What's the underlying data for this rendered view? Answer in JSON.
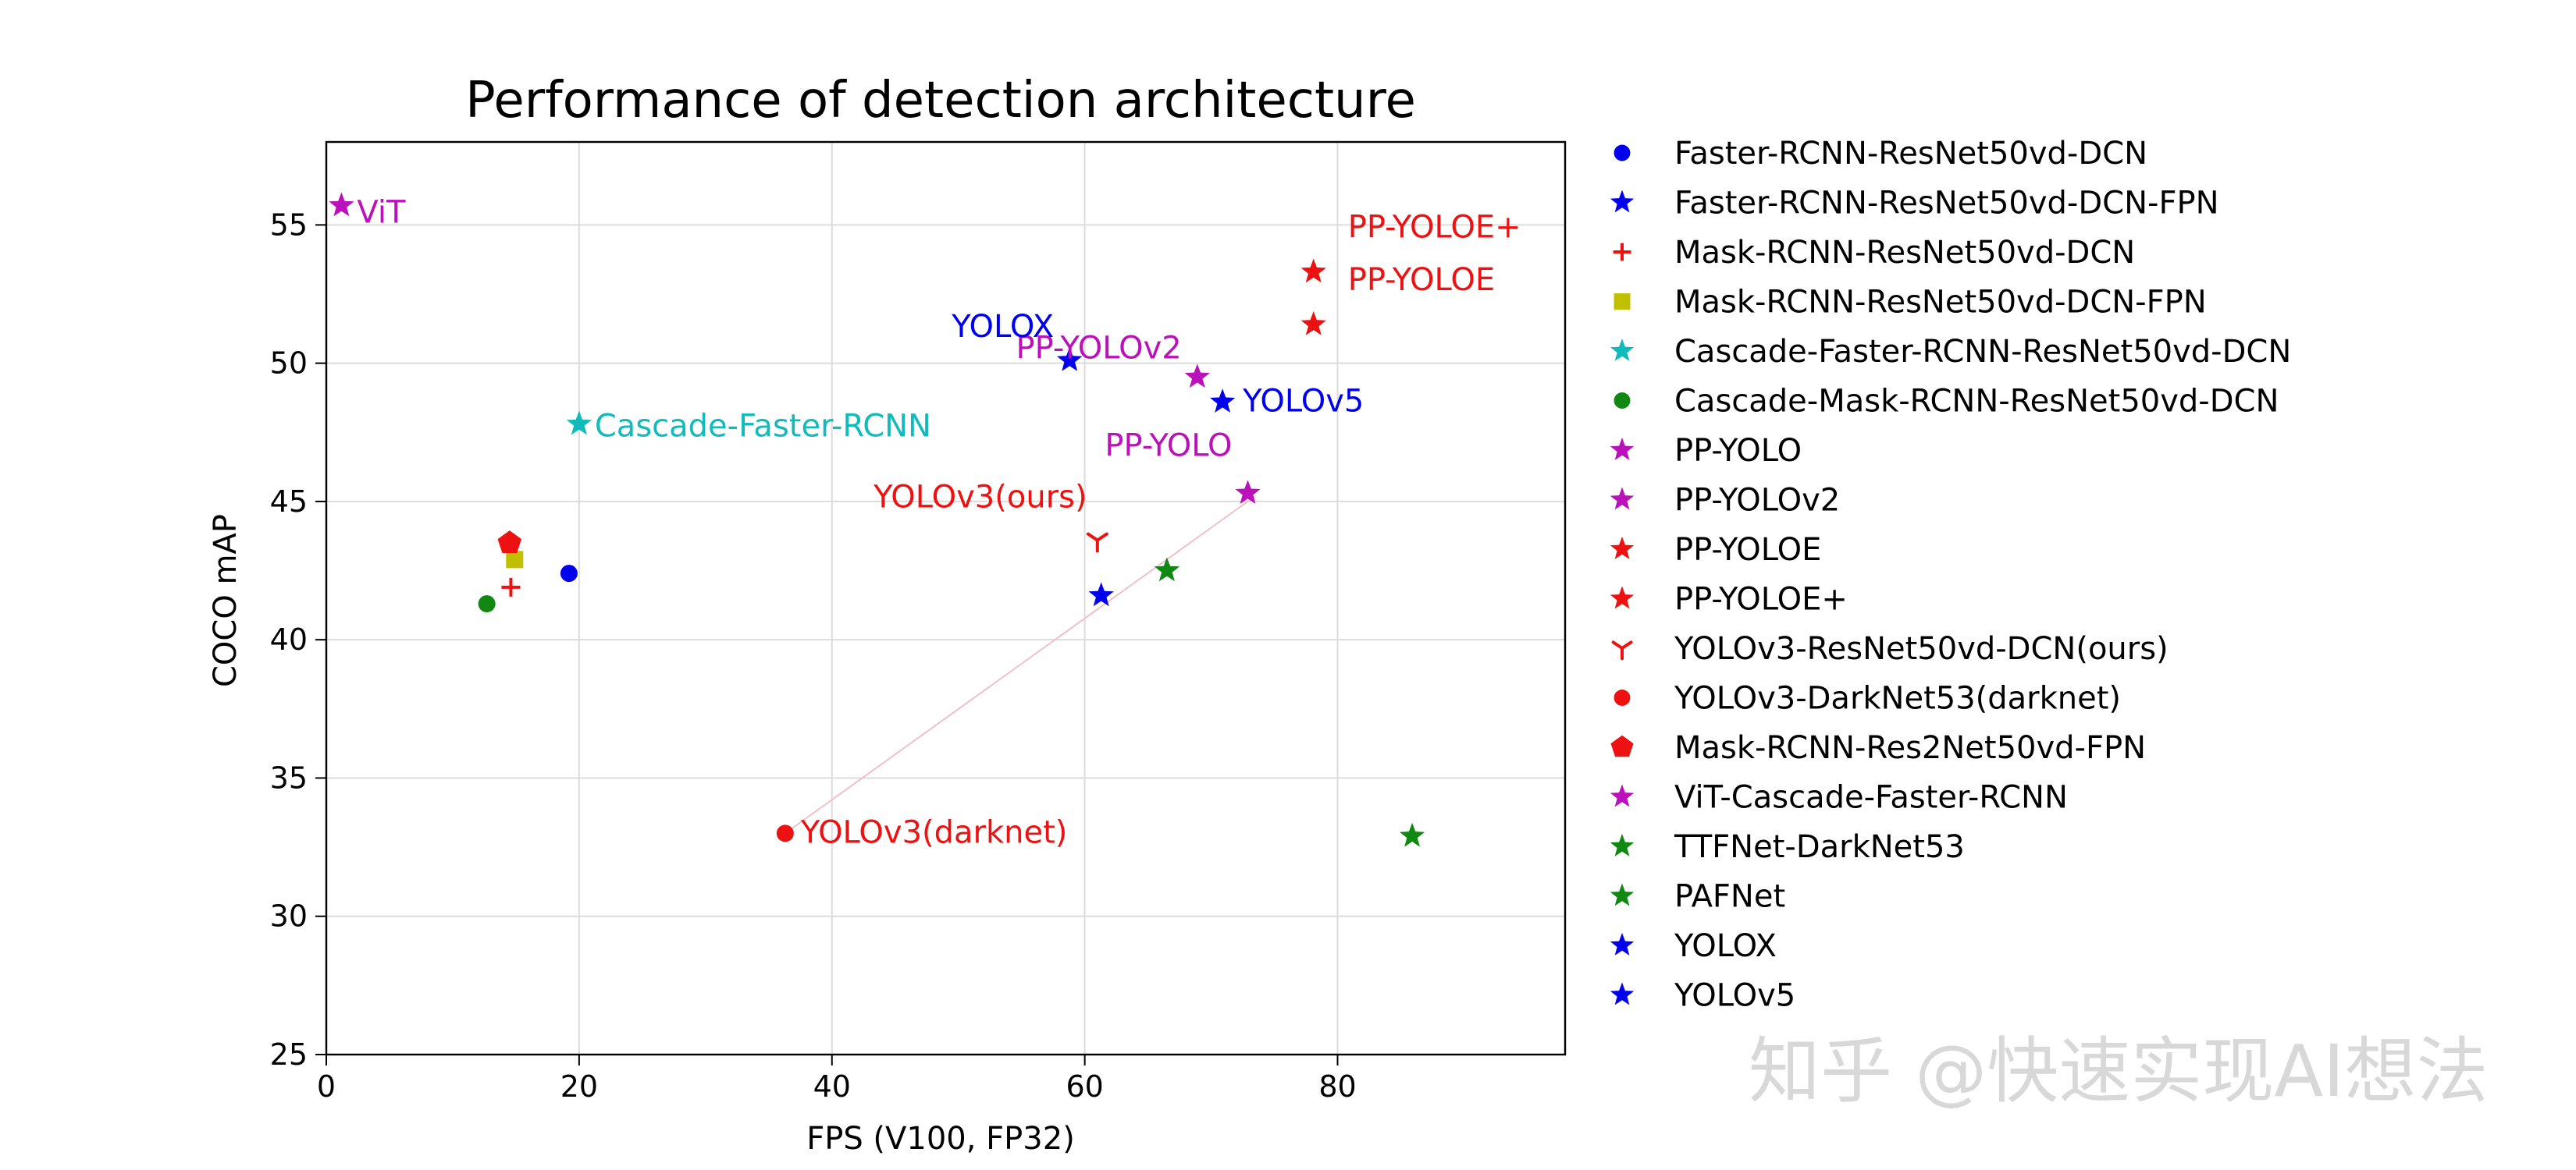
{
  "chart_data": {
    "type": "scatter",
    "title": "Performance of detection architecture",
    "xlabel": "FPS (V100, FP32)",
    "ylabel": "COCO mAP",
    "xlim": [
      0,
      98
    ],
    "ylim": [
      25,
      58
    ],
    "xticks": [
      0,
      20,
      40,
      60,
      80
    ],
    "yticks": [
      25,
      30,
      35,
      40,
      45,
      50,
      55
    ],
    "grid": true,
    "legend_placement": "right, outside plot",
    "series": [
      {
        "name": "Faster-RCNN-ResNet50vd-DCN",
        "marker": "circle",
        "color": "#0000ee",
        "x": 19.2,
        "y": 42.4
      },
      {
        "name": "Faster-RCNN-ResNet50vd-DCN-FPN",
        "marker": "star",
        "color": "#0000ee",
        "x": 61.3,
        "y": 41.6
      },
      {
        "name": "Mask-RCNN-ResNet50vd-DCN",
        "marker": "plus",
        "color": "#ee1111",
        "x": 14.6,
        "y": 41.9
      },
      {
        "name": "Mask-RCNN-ResNet50vd-DCN-FPN",
        "marker": "square",
        "color": "#c0c000",
        "x": 14.9,
        "y": 42.9
      },
      {
        "name": "Cascade-Faster-RCNN-ResNet50vd-DCN",
        "marker": "star",
        "color": "#11bbbb",
        "x": 20.0,
        "y": 47.8,
        "label": "Cascade-Faster-RCNN",
        "label_color": "#11bbbb"
      },
      {
        "name": "Cascade-Mask-RCNN-ResNet50vd-DCN",
        "marker": "circle",
        "color": "#118811",
        "x": 12.7,
        "y": 41.3
      },
      {
        "name": "PP-YOLO",
        "marker": "star",
        "color": "#bb11bb",
        "x": 72.9,
        "y": 45.3,
        "label": "PP-YOLO",
        "label_color": "#bb11bb"
      },
      {
        "name": "PP-YOLOv2",
        "marker": "star",
        "color": "#bb11bb",
        "x": 68.9,
        "y": 49.5,
        "label": "PP-YOLOv2",
        "label_color": "#bb11bb"
      },
      {
        "name": "PP-YOLOE",
        "marker": "star",
        "color": "#ee1111",
        "x": 78.1,
        "y": 51.4,
        "label": "PP-YOLOE",
        "label_color": "#ee1111"
      },
      {
        "name": "PP-YOLOE+",
        "marker": "star",
        "color": "#ee1111",
        "x": 78.1,
        "y": 53.3,
        "label": "PP-YOLOE+",
        "label_color": "#ee1111"
      },
      {
        "name": "YOLOv3-ResNet50vd-DCN(ours)",
        "marker": "tri",
        "color": "#ee1111",
        "x": 61.0,
        "y": 43.6,
        "label": "YOLOv3(ours)",
        "label_color": "#ee1111"
      },
      {
        "name": "YOLOv3-DarkNet53(darknet)",
        "marker": "circle",
        "color": "#ee1111",
        "x": 36.3,
        "y": 33.0,
        "label": "YOLOv3(darknet)",
        "label_color": "#ee1111"
      },
      {
        "name": "Mask-RCNN-Res2Net50vd-FPN",
        "marker": "pentagon",
        "color": "#ee1111",
        "x": 14.5,
        "y": 43.5
      },
      {
        "name": "ViT-Cascade-Faster-RCNN",
        "marker": "star",
        "color": "#bb11bb",
        "x": 1.2,
        "y": 55.7,
        "label": "ViT",
        "label_color": "#bb11bb"
      },
      {
        "name": "TTFNet-DarkNet53",
        "marker": "star",
        "color": "#118811",
        "x": 85.9,
        "y": 32.9
      },
      {
        "name": "PAFNet",
        "marker": "star",
        "color": "#118811",
        "x": 66.5,
        "y": 42.5
      },
      {
        "name": "YOLOX",
        "marker": "star",
        "color": "#0000ee",
        "x": 58.8,
        "y": 50.1,
        "label": "YOLOX",
        "label_color": "#0000ee"
      },
      {
        "name": "YOLOv5",
        "marker": "star",
        "color": "#0000ee",
        "x": 70.9,
        "y": 48.6,
        "label": "YOLOv5",
        "label_color": "#0000ee"
      }
    ],
    "connector": {
      "from": "YOLOv3-DarkNet53(darknet)",
      "to_point": [
        73.5,
        45.2
      ],
      "color": "#f0c0c8"
    }
  },
  "watermark": "知乎 @快速实现AI想法"
}
